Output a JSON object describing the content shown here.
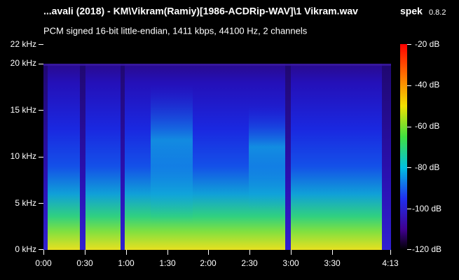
{
  "header": {
    "title": "...avali (2018) - KM\\Vikram(Ramiy)[1986-ACDRip-WAV]\\1 Vikram.wav",
    "app": "spek",
    "version": "0.8.2",
    "subtitle": "PCM signed 16-bit little-endian, 1411 kbps, 44100 Hz, 2 channels"
  },
  "y_axis": {
    "labels": [
      "22 kHz",
      "20 kHz",
      "15 kHz",
      "10 kHz",
      "5 kHz",
      "0 kHz"
    ]
  },
  "x_axis": {
    "labels": [
      "0:00",
      "0:30",
      "1:00",
      "1:30",
      "2:00",
      "2:30",
      "3:00",
      "3:30",
      "4:13"
    ]
  },
  "color_scale": {
    "labels": [
      "-20 dB",
      "-40 dB",
      "-60 dB",
      "-80 dB",
      "-100 dB",
      "-120 dB"
    ]
  }
}
